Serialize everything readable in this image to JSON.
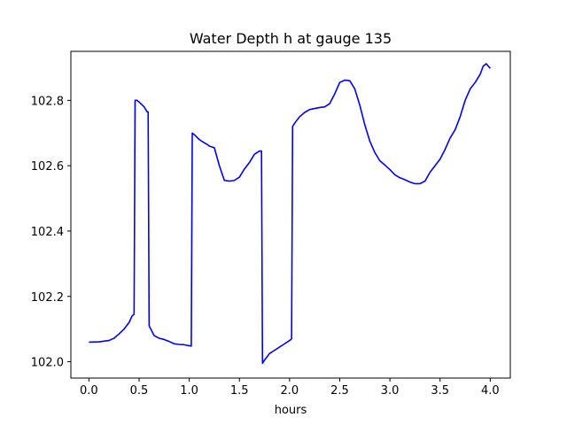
{
  "chart_data": {
    "type": "line",
    "title": "Water Depth h at gauge 135",
    "xlabel": "hours",
    "ylabel": "",
    "xlim": [
      -0.18,
      4.2
    ],
    "ylim": [
      101.95,
      102.95
    ],
    "xticks": [
      0.0,
      0.5,
      1.0,
      1.5,
      2.0,
      2.5,
      3.0,
      3.5,
      4.0
    ],
    "xtick_labels": [
      "0.0",
      "0.5",
      "1.0",
      "1.5",
      "2.0",
      "2.5",
      "3.0",
      "3.5",
      "4.0"
    ],
    "yticks": [
      102.0,
      102.2,
      102.4,
      102.6,
      102.8
    ],
    "ytick_labels": [
      "102.0",
      "102.2",
      "102.4",
      "102.6",
      "102.8"
    ],
    "grid": false,
    "series": [
      {
        "color": "#0000ff",
        "x": [
          0.0,
          0.1,
          0.2,
          0.25,
          0.3,
          0.35,
          0.4,
          0.43,
          0.45,
          0.46,
          0.48,
          0.5,
          0.55,
          0.58,
          0.59,
          0.6,
          0.65,
          0.7,
          0.75,
          0.8,
          0.85,
          0.9,
          0.95,
          0.98,
          1.02,
          1.03,
          1.05,
          1.1,
          1.15,
          1.18,
          1.2,
          1.25,
          1.3,
          1.35,
          1.4,
          1.45,
          1.5,
          1.55,
          1.6,
          1.65,
          1.7,
          1.72,
          1.73,
          1.75,
          1.8,
          1.85,
          1.9,
          1.95,
          2.0,
          2.02,
          2.03,
          2.05,
          2.1,
          2.15,
          2.2,
          2.25,
          2.3,
          2.35,
          2.4,
          2.45,
          2.5,
          2.55,
          2.6,
          2.65,
          2.7,
          2.75,
          2.8,
          2.85,
          2.9,
          2.95,
          3.0,
          3.05,
          3.1,
          3.15,
          3.2,
          3.25,
          3.3,
          3.35,
          3.4,
          3.45,
          3.5,
          3.55,
          3.6,
          3.65,
          3.7,
          3.75,
          3.8,
          3.85,
          3.9,
          3.93,
          3.96,
          3.98,
          4.0
        ],
        "y": [
          102.06,
          102.061,
          102.065,
          102.072,
          102.085,
          102.1,
          102.12,
          102.14,
          102.145,
          102.8,
          102.8,
          102.795,
          102.78,
          102.765,
          102.765,
          102.11,
          102.08,
          102.072,
          102.068,
          102.062,
          102.055,
          102.053,
          102.052,
          102.05,
          102.048,
          102.7,
          102.695,
          102.68,
          102.67,
          102.665,
          102.66,
          102.655,
          102.6,
          102.555,
          102.553,
          102.555,
          102.565,
          102.59,
          102.61,
          102.635,
          102.645,
          102.645,
          101.995,
          102.005,
          102.025,
          102.035,
          102.045,
          102.055,
          102.065,
          102.07,
          102.72,
          102.73,
          102.75,
          102.763,
          102.772,
          102.775,
          102.778,
          102.78,
          102.79,
          102.82,
          102.855,
          102.862,
          102.86,
          102.835,
          102.785,
          102.725,
          102.675,
          102.64,
          102.615,
          102.602,
          102.588,
          102.572,
          102.563,
          102.557,
          102.55,
          102.545,
          102.545,
          102.553,
          102.58,
          102.6,
          102.62,
          102.65,
          102.685,
          102.71,
          102.75,
          102.8,
          102.835,
          102.855,
          102.88,
          102.905,
          102.912,
          102.905,
          102.898
        ]
      }
    ]
  }
}
